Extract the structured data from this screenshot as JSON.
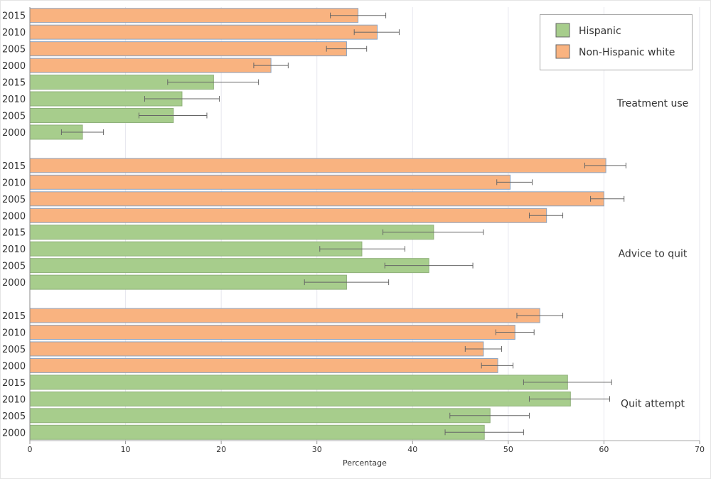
{
  "chart_data": {
    "type": "bar",
    "orientation": "horizontal",
    "xlabel": "Percentage",
    "xlim": [
      0,
      70
    ],
    "xticks": [
      0,
      10,
      20,
      30,
      40,
      50,
      60,
      70
    ],
    "grid": true,
    "legend_position": "top-right",
    "legend": [
      {
        "name": "Hispanic",
        "color": "#a7cd8c"
      },
      {
        "name": "Non-Hispanic white",
        "color": "#f9b380"
      }
    ],
    "groups": [
      {
        "label": "Treatment use",
        "rows": [
          {
            "year": "2015",
            "series": "Non-Hispanic white",
            "value": 34.3,
            "ci": [
              31.4,
              37.2
            ]
          },
          {
            "year": "2010",
            "series": "Non-Hispanic white",
            "value": 36.3,
            "ci": [
              33.9,
              38.6
            ]
          },
          {
            "year": "2005",
            "series": "Non-Hispanic white",
            "value": 33.1,
            "ci": [
              31.0,
              35.2
            ]
          },
          {
            "year": "2000",
            "series": "Non-Hispanic white",
            "value": 25.2,
            "ci": [
              23.4,
              27.0
            ]
          },
          {
            "year": "2015",
            "series": "Hispanic",
            "value": 19.2,
            "ci": [
              14.4,
              23.9
            ]
          },
          {
            "year": "2010",
            "series": "Hispanic",
            "value": 15.9,
            "ci": [
              12.0,
              19.8
            ]
          },
          {
            "year": "2005",
            "series": "Hispanic",
            "value": 15.0,
            "ci": [
              11.4,
              18.5
            ]
          },
          {
            "year": "2000",
            "series": "Hispanic",
            "value": 5.5,
            "ci": [
              3.3,
              7.7
            ]
          }
        ]
      },
      {
        "label": "Advice to quit",
        "rows": [
          {
            "year": "2015",
            "series": "Non-Hispanic white",
            "value": 60.2,
            "ci": [
              58.0,
              62.3
            ]
          },
          {
            "year": "2010",
            "series": "Non-Hispanic white",
            "value": 50.2,
            "ci": [
              48.8,
              52.5
            ]
          },
          {
            "year": "2005",
            "series": "Non-Hispanic white",
            "value": 60.0,
            "ci": [
              58.6,
              62.1
            ]
          },
          {
            "year": "2000",
            "series": "Non-Hispanic white",
            "value": 54.0,
            "ci": [
              52.2,
              55.7
            ]
          },
          {
            "year": "2015",
            "series": "Hispanic",
            "value": 42.2,
            "ci": [
              36.9,
              47.4
            ]
          },
          {
            "year": "2010",
            "series": "Hispanic",
            "value": 34.7,
            "ci": [
              30.3,
              39.2
            ]
          },
          {
            "year": "2005",
            "series": "Hispanic",
            "value": 41.7,
            "ci": [
              37.1,
              46.3
            ]
          },
          {
            "year": "2000",
            "series": "Hispanic",
            "value": 33.1,
            "ci": [
              28.7,
              37.5
            ]
          }
        ]
      },
      {
        "label": "Quit attempt",
        "rows": [
          {
            "year": "2015",
            "series": "Non-Hispanic white",
            "value": 53.3,
            "ci": [
              50.9,
              55.7
            ]
          },
          {
            "year": "2010",
            "series": "Non-Hispanic white",
            "value": 50.7,
            "ci": [
              48.7,
              52.7
            ]
          },
          {
            "year": "2005",
            "series": "Non-Hispanic white",
            "value": 47.4,
            "ci": [
              45.5,
              49.3
            ]
          },
          {
            "year": "2000",
            "series": "Non-Hispanic white",
            "value": 48.9,
            "ci": [
              47.2,
              50.5
            ]
          },
          {
            "year": "2015",
            "series": "Hispanic",
            "value": 56.2,
            "ci": [
              51.6,
              60.8
            ]
          },
          {
            "year": "2010",
            "series": "Hispanic",
            "value": 56.5,
            "ci": [
              52.2,
              60.6
            ]
          },
          {
            "year": "2005",
            "series": "Hispanic",
            "value": 48.1,
            "ci": [
              43.9,
              52.2
            ]
          },
          {
            "year": "2000",
            "series": "Hispanic",
            "value": 47.5,
            "ci": [
              43.4,
              51.6
            ]
          }
        ]
      }
    ]
  }
}
